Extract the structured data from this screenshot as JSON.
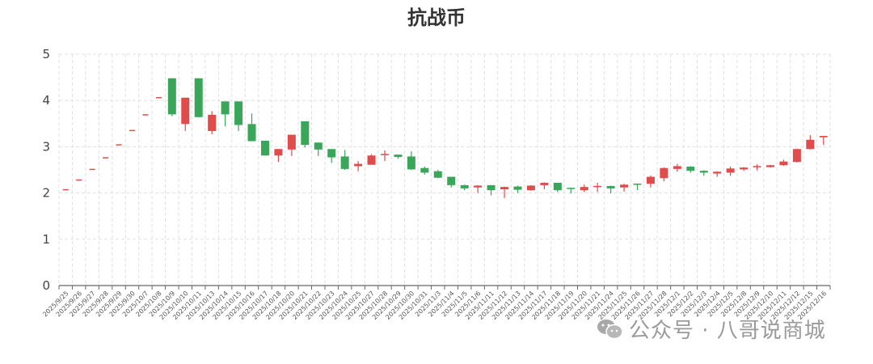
{
  "chart_data": {
    "type": "candlestick",
    "title": "抗战币",
    "xlabel": "",
    "ylabel": "",
    "ylim": [
      0,
      5
    ],
    "yticks": [
      0,
      1,
      2,
      3,
      4,
      5
    ],
    "grid": true,
    "colors": {
      "up": "#e04b4b",
      "down": "#3aa65a",
      "grid": "#e0e0e0",
      "axis": "#666666"
    },
    "columns": [
      "date",
      "open",
      "close",
      "low",
      "high"
    ],
    "candles": [
      [
        "2025/9/25",
        2.07,
        2.07,
        2.07,
        2.07
      ],
      [
        "2025/9/26",
        2.28,
        2.28,
        2.28,
        2.28
      ],
      [
        "2025/9/27",
        2.51,
        2.51,
        2.51,
        2.51
      ],
      [
        "2025/9/28",
        2.76,
        2.76,
        2.76,
        2.76
      ],
      [
        "2025/9/29",
        3.04,
        3.04,
        3.04,
        3.04
      ],
      [
        "2025/9/30",
        3.35,
        3.35,
        3.35,
        3.35
      ],
      [
        "2025/10/7",
        3.69,
        3.69,
        3.69,
        3.69
      ],
      [
        "2025/10/8",
        4.06,
        4.06,
        4.06,
        4.06
      ],
      [
        "2025/10/9",
        4.48,
        3.7,
        3.66,
        4.48
      ],
      [
        "2025/10/10",
        3.49,
        4.06,
        3.34,
        4.06
      ],
      [
        "2025/10/11",
        4.48,
        3.64,
        3.64,
        4.48
      ],
      [
        "2025/10/13",
        3.34,
        3.69,
        3.27,
        3.77
      ],
      [
        "2025/10/14",
        3.98,
        3.7,
        3.44,
        3.98
      ],
      [
        "2025/10/15",
        3.98,
        3.47,
        3.34,
        3.98
      ],
      [
        "2025/10/16",
        3.49,
        3.12,
        3.12,
        3.72
      ],
      [
        "2025/10/17",
        3.13,
        2.81,
        2.81,
        3.13
      ],
      [
        "2025/10/18",
        2.81,
        2.95,
        2.67,
        2.95
      ],
      [
        "2025/10/20",
        2.94,
        3.26,
        2.8,
        3.26
      ],
      [
        "2025/10/21",
        3.55,
        3.04,
        2.98,
        3.55
      ],
      [
        "2025/10/22",
        3.09,
        2.94,
        2.8,
        3.09
      ],
      [
        "2025/10/23",
        2.95,
        2.77,
        2.65,
        2.95
      ],
      [
        "2025/10/24",
        2.79,
        2.52,
        2.5,
        2.93
      ],
      [
        "2025/10/25",
        2.58,
        2.63,
        2.47,
        2.69
      ],
      [
        "2025/10/27",
        2.61,
        2.81,
        2.61,
        2.84
      ],
      [
        "2025/10/28",
        2.81,
        2.83,
        2.69,
        2.92
      ],
      [
        "2025/10/29",
        2.83,
        2.78,
        2.74,
        2.83
      ],
      [
        "2025/10/30",
        2.79,
        2.51,
        2.5,
        2.9
      ],
      [
        "2025/10/31",
        2.54,
        2.44,
        2.4,
        2.57
      ],
      [
        "2025/11/3",
        2.47,
        2.33,
        2.32,
        2.5
      ],
      [
        "2025/11/4",
        2.35,
        2.17,
        2.12,
        2.35
      ],
      [
        "2025/11/5",
        2.17,
        2.1,
        2.06,
        2.18
      ],
      [
        "2025/11/6",
        2.12,
        2.16,
        2.0,
        2.17
      ],
      [
        "2025/11/11",
        2.17,
        2.06,
        1.95,
        2.17
      ],
      [
        "2025/11/12",
        2.08,
        2.13,
        1.89,
        2.14
      ],
      [
        "2025/11/13",
        2.14,
        2.07,
        2.0,
        2.16
      ],
      [
        "2025/11/14",
        2.06,
        2.16,
        2.05,
        2.17
      ],
      [
        "2025/11/17",
        2.17,
        2.22,
        2.08,
        2.23
      ],
      [
        "2025/11/18",
        2.22,
        2.06,
        2.02,
        2.22
      ],
      [
        "2025/11/19",
        2.1,
        2.09,
        1.99,
        2.11
      ],
      [
        "2025/11/20",
        2.06,
        2.13,
        2.02,
        2.18
      ],
      [
        "2025/11/21",
        2.12,
        2.14,
        2.02,
        2.22
      ],
      [
        "2025/11/24",
        2.15,
        2.1,
        1.99,
        2.16
      ],
      [
        "2025/11/25",
        2.12,
        2.18,
        2.03,
        2.2
      ],
      [
        "2025/11/26",
        2.19,
        2.18,
        2.06,
        2.2
      ],
      [
        "2025/11/27",
        2.2,
        2.35,
        2.12,
        2.38
      ],
      [
        "2025/11/28",
        2.32,
        2.54,
        2.25,
        2.55
      ],
      [
        "2025/12/1",
        2.52,
        2.58,
        2.46,
        2.63
      ],
      [
        "2025/12/2",
        2.57,
        2.48,
        2.44,
        2.58
      ],
      [
        "2025/12/3",
        2.48,
        2.44,
        2.37,
        2.49
      ],
      [
        "2025/12/4",
        2.42,
        2.46,
        2.35,
        2.47
      ],
      [
        "2025/12/5",
        2.44,
        2.53,
        2.37,
        2.57
      ],
      [
        "2025/12/8",
        2.51,
        2.55,
        2.48,
        2.56
      ],
      [
        "2025/12/9",
        2.55,
        2.57,
        2.49,
        2.62
      ],
      [
        "2025/12/10",
        2.56,
        2.6,
        2.55,
        2.61
      ],
      [
        "2025/12/11",
        2.6,
        2.68,
        2.59,
        2.72
      ],
      [
        "2025/12/12",
        2.67,
        2.95,
        2.66,
        2.96
      ],
      [
        "2025/12/15",
        2.95,
        3.15,
        2.94,
        3.25
      ],
      [
        "2025/12/16",
        3.19,
        3.22,
        3.04,
        3.22
      ]
    ]
  },
  "watermark": {
    "text": "公众号 · 八哥说商城",
    "icon": "wechat-icon"
  }
}
